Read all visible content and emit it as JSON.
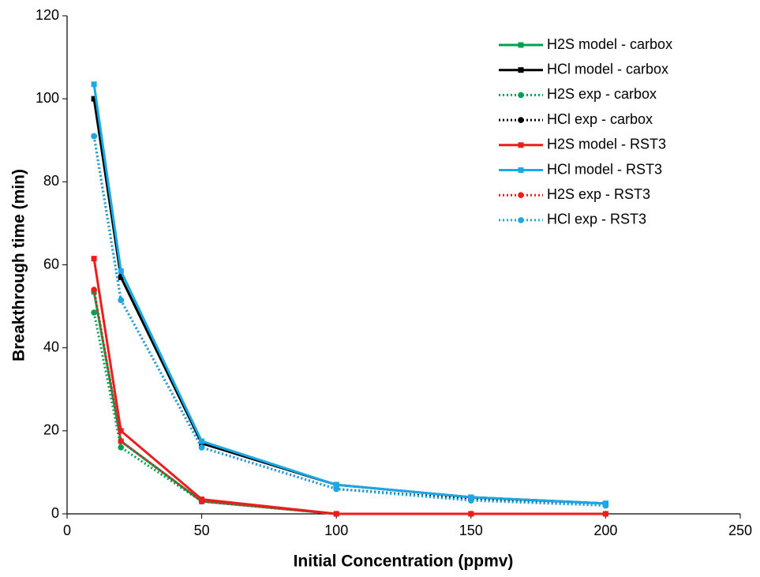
{
  "chart_data": {
    "type": "line",
    "x_label": "Initial Concentration (ppmv)",
    "y_label": "Breakthrough time (min)",
    "x": [
      10,
      20,
      50,
      100,
      150,
      200
    ],
    "xlim": [
      0,
      250
    ],
    "xticks": [
      0,
      50,
      100,
      150,
      200,
      250
    ],
    "ylim": [
      0,
      120
    ],
    "yticks": [
      0,
      20,
      40,
      60,
      80,
      100,
      120
    ],
    "legend": "upper right",
    "series": [
      {
        "name": "H2S model - carbox",
        "color": "#00a050",
        "dash": "solid",
        "marker": "square",
        "values": [
          53.5,
          17.5,
          3,
          0,
          0,
          0
        ]
      },
      {
        "name": "HCl model - carbox",
        "color": "#000000",
        "dash": "solid",
        "marker": "square",
        "values": [
          100,
          57,
          17,
          7,
          4,
          2.5
        ]
      },
      {
        "name": "H2S exp - carbox",
        "color": "#00a050",
        "dash": "dotted",
        "marker": "circle",
        "values": [
          48.5,
          16,
          3,
          0,
          0,
          0
        ]
      },
      {
        "name": "HCl exp - carbox",
        "color": "#000000",
        "dash": "dotted",
        "marker": "circle",
        "values": [
          91,
          51.5,
          16,
          6,
          3.5,
          2
        ]
      },
      {
        "name": "H2S model - RST3",
        "color": "#ee1c1c",
        "dash": "solid",
        "marker": "square",
        "values": [
          61.5,
          20,
          3.5,
          0,
          0,
          0
        ]
      },
      {
        "name": "HCl model - RST3",
        "color": "#1aa9e6",
        "dash": "solid",
        "marker": "square",
        "values": [
          103.5,
          58.5,
          17.5,
          7,
          4,
          2.5
        ]
      },
      {
        "name": "H2S exp - RST3",
        "color": "#ee1c1c",
        "dash": "dotted",
        "marker": "circle",
        "values": [
          54,
          17.5,
          3,
          0,
          0,
          0
        ]
      },
      {
        "name": "HCl exp - RST3",
        "color": "#1aa9e6",
        "dash": "dotted",
        "marker": "circle",
        "values": [
          91,
          51.5,
          16,
          6,
          3.2,
          2
        ]
      }
    ]
  }
}
